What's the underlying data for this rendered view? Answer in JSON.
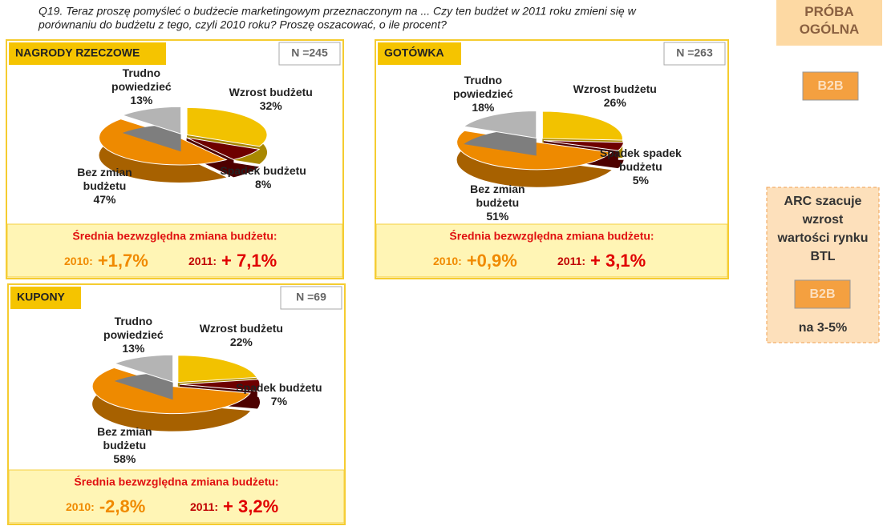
{
  "question": [
    "Q19. Teraz proszę pomyśleć o budżecie marketingowym przeznaczonym na ... Czy ten budżet w 2011 roku zmieni się w",
    "porównaniu do budżetu z tego, czyli 2010 roku? Proszę oszacować, o ile procent?"
  ],
  "sidebar": {
    "sample": "PRÓBA OGÓLNA",
    "segment": "B2B",
    "note": "ARC szacuje wzrost wartości rynku BTL",
    "note_segment": "B2B",
    "note_range": "na 3-5%"
  },
  "chart_data": [
    {
      "type": "pie",
      "title": "NAGRODY RZECZOWE",
      "n": "N =245",
      "categories": [
        "Wzrost budżetu",
        "Spadek budżetu",
        "Bez zmian budżetu",
        "Trudno powiedzieć"
      ],
      "values": [
        32,
        8,
        47,
        13
      ],
      "value_labels": [
        "32%",
        "8%",
        "47%",
        "13%"
      ],
      "colors": [
        "#f2c200",
        "#6e0000",
        "#ee8a00",
        "#b4b4b4"
      ],
      "summary": {
        "label": "Średnia bezwzględna zmiana budżetu:",
        "items": [
          {
            "year": "2010:",
            "value": "+1,7%"
          },
          {
            "year": "2011:",
            "value": "+ 7,1%"
          }
        ]
      }
    },
    {
      "type": "pie",
      "title": "GOTÓWKA",
      "n": "N =263",
      "categories": [
        "Wzrost budżetu",
        "Spadek spadek budżetu",
        "Bez zmian budżetu",
        "Trudno powiedzieć"
      ],
      "values": [
        26,
        5,
        51,
        18
      ],
      "value_labels": [
        "26%",
        "5%",
        "51%",
        "18%"
      ],
      "colors": [
        "#f2c200",
        "#6e0000",
        "#ee8a00",
        "#b4b4b4"
      ],
      "summary": {
        "label": "Średnia bezwzględna zmiana budżetu:",
        "items": [
          {
            "year": "2010:",
            "value": "+0,9%"
          },
          {
            "year": "2011:",
            "value": "+ 3,1%"
          }
        ]
      }
    },
    {
      "type": "pie",
      "title": "KUPONY",
      "n": "N =69",
      "categories": [
        "Wzrost budżetu",
        "Spadek budżetu",
        "Bez zmian budżetu",
        "Trudno powiedzieć"
      ],
      "values": [
        22,
        7,
        58,
        13
      ],
      "value_labels": [
        "22%",
        "7%",
        "58%",
        "13%"
      ],
      "colors": [
        "#f2c200",
        "#6e0000",
        "#ee8a00",
        "#b4b4b4"
      ],
      "summary": {
        "label": "Średnia bezwzględna zmiana budżetu:",
        "items": [
          {
            "year": "2010:",
            "value": "-2,8%"
          },
          {
            "year": "2011:",
            "value": "+ 3,2%"
          }
        ]
      }
    }
  ]
}
